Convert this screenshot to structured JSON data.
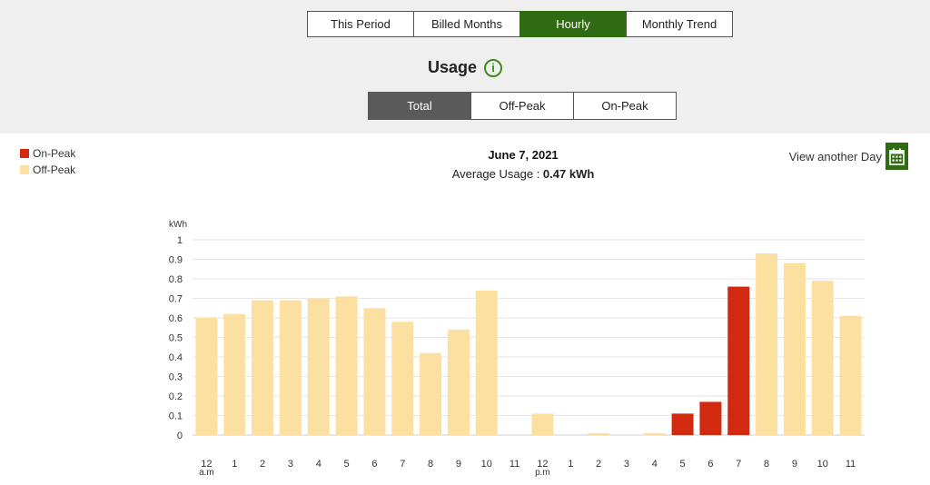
{
  "tabs": [
    {
      "label": "This Period",
      "active": false
    },
    {
      "label": "Billed Months",
      "active": false
    },
    {
      "label": "Hourly",
      "active": true
    },
    {
      "label": "Monthly Trend",
      "active": false
    }
  ],
  "usage_title": "Usage",
  "info_icon": "i",
  "subtabs": [
    {
      "label": "Total",
      "active": true
    },
    {
      "label": "Off-Peak",
      "active": false
    },
    {
      "label": "On-Peak",
      "active": false
    }
  ],
  "legend": [
    {
      "label": "On-Peak",
      "color": "#d22a10"
    },
    {
      "label": "Off-Peak",
      "color": "#fce0a2"
    }
  ],
  "date": "June 7, 2021",
  "average_label": "Average Usage : ",
  "average_value": "0.47 kWh",
  "view_another_day": "View another Day",
  "colors": {
    "accent": "#2f6b12",
    "on_peak": "#d22a10",
    "off_peak": "#fce0a2"
  },
  "chart_data": {
    "type": "bar",
    "ylabel": "kWh",
    "ylim": [
      0,
      1
    ],
    "yticks": [
      0,
      0.1,
      0.2,
      0.3,
      0.4,
      0.5,
      0.6,
      0.7,
      0.8,
      0.9,
      1
    ],
    "categories": [
      "12",
      "1",
      "2",
      "3",
      "4",
      "5",
      "6",
      "7",
      "8",
      "9",
      "10",
      "11",
      "12",
      "1",
      "2",
      "3",
      "4",
      "5",
      "6",
      "7",
      "8",
      "9",
      "10",
      "11"
    ],
    "sublabels": {
      "0": "a.m",
      "12": "p.m"
    },
    "values": [
      0.6,
      0.62,
      0.69,
      0.69,
      0.7,
      0.71,
      0.65,
      0.58,
      0.42,
      0.54,
      0.74,
      0,
      0.11,
      0,
      0.01,
      0,
      0.01,
      0.11,
      0.17,
      0.76,
      0.93,
      0.88,
      0.79,
      0.61
    ],
    "peak": [
      "off",
      "off",
      "off",
      "off",
      "off",
      "off",
      "off",
      "off",
      "off",
      "off",
      "off",
      "off",
      "off",
      "off",
      "off",
      "off",
      "off",
      "on",
      "on",
      "on",
      "off",
      "off",
      "off",
      "off"
    ],
    "grid": true
  }
}
